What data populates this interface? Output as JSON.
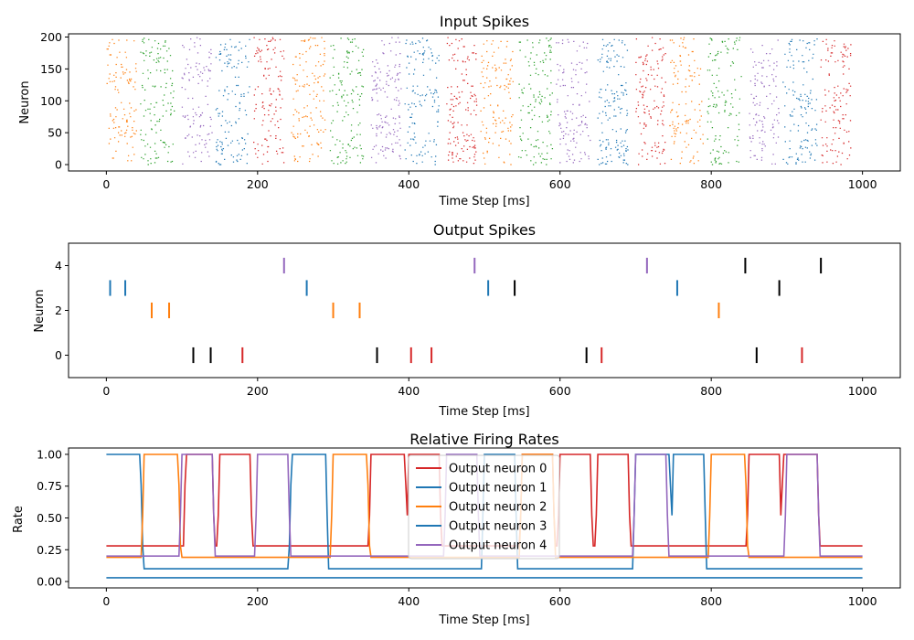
{
  "chart_data": [
    {
      "type": "raster",
      "title": "Input Spikes",
      "xlabel": "Time Step [ms]",
      "ylabel": "Neuron",
      "xlim": [
        -50,
        1050
      ],
      "ylim": [
        -10,
        205
      ],
      "xticks": [
        0,
        200,
        400,
        600,
        800,
        1000
      ],
      "yticks": [
        0,
        50,
        100,
        150,
        200
      ],
      "neuron_count": 200,
      "pattern_duration_ms": 45,
      "pattern_sequence": [
        1,
        2,
        3,
        0,
        4,
        1,
        2,
        3,
        0,
        4,
        1,
        2,
        3,
        0,
        4,
        1,
        2,
        3,
        0,
        4,
        1,
        2
      ],
      "active_window_ms": [
        [
          0,
          40
        ],
        [
          45,
          90
        ],
        [
          100,
          140
        ],
        [
          145,
          190
        ],
        [
          195,
          235
        ],
        [
          245,
          290
        ],
        [
          295,
          340
        ],
        [
          350,
          390
        ],
        [
          395,
          440
        ],
        [
          450,
          490
        ],
        [
          495,
          540
        ],
        [
          545,
          590
        ],
        [
          595,
          640
        ],
        [
          650,
          690
        ],
        [
          700,
          740
        ],
        [
          745,
          790
        ],
        [
          795,
          840
        ],
        [
          850,
          890
        ],
        [
          895,
          940
        ],
        [
          945,
          985
        ]
      ]
    },
    {
      "type": "eventplot",
      "title": "Output Spikes",
      "xlabel": "Time Step [ms]",
      "ylabel": "Neuron",
      "xlim": [
        -50,
        1050
      ],
      "ylim": [
        -1,
        5
      ],
      "xticks": [
        0,
        200,
        400,
        600,
        800,
        1000
      ],
      "yticks": [
        0,
        2,
        4
      ],
      "spikes": [
        {
          "neuron": 4,
          "t": 235,
          "color": "#9467bd"
        },
        {
          "neuron": 4,
          "t": 487,
          "color": "#9467bd"
        },
        {
          "neuron": 4,
          "t": 715,
          "color": "#9467bd"
        },
        {
          "neuron": 4,
          "t": 845,
          "color": "#000000"
        },
        {
          "neuron": 4,
          "t": 945,
          "color": "#000000"
        },
        {
          "neuron": 3,
          "t": 5,
          "color": "#1f77b4"
        },
        {
          "neuron": 3,
          "t": 25,
          "color": "#1f77b4"
        },
        {
          "neuron": 3,
          "t": 265,
          "color": "#1f77b4"
        },
        {
          "neuron": 3,
          "t": 505,
          "color": "#1f77b4"
        },
        {
          "neuron": 3,
          "t": 540,
          "color": "#000000"
        },
        {
          "neuron": 3,
          "t": 755,
          "color": "#1f77b4"
        },
        {
          "neuron": 3,
          "t": 890,
          "color": "#000000"
        },
        {
          "neuron": 2,
          "t": 60,
          "color": "#ff7f0e"
        },
        {
          "neuron": 2,
          "t": 83,
          "color": "#ff7f0e"
        },
        {
          "neuron": 2,
          "t": 300,
          "color": "#ff7f0e"
        },
        {
          "neuron": 2,
          "t": 335,
          "color": "#ff7f0e"
        },
        {
          "neuron": 2,
          "t": 810,
          "color": "#ff7f0e"
        },
        {
          "neuron": 0,
          "t": 115,
          "color": "#000000"
        },
        {
          "neuron": 0,
          "t": 138,
          "color": "#000000"
        },
        {
          "neuron": 0,
          "t": 180,
          "color": "#d62728"
        },
        {
          "neuron": 0,
          "t": 358,
          "color": "#000000"
        },
        {
          "neuron": 0,
          "t": 403,
          "color": "#d62728"
        },
        {
          "neuron": 0,
          "t": 430,
          "color": "#d62728"
        },
        {
          "neuron": 0,
          "t": 635,
          "color": "#000000"
        },
        {
          "neuron": 0,
          "t": 655,
          "color": "#d62728"
        },
        {
          "neuron": 0,
          "t": 860,
          "color": "#000000"
        },
        {
          "neuron": 0,
          "t": 920,
          "color": "#d62728"
        }
      ]
    },
    {
      "type": "line",
      "title": "Relative Firing Rates",
      "xlabel": "Time Step [ms]",
      "ylabel": "Rate",
      "xlim": [
        -50,
        1050
      ],
      "ylim": [
        -0.05,
        1.05
      ],
      "xticks": [
        0,
        200,
        400,
        600,
        800,
        1000
      ],
      "yticks": [
        0.0,
        0.25,
        0.5,
        0.75,
        1.0
      ],
      "ytick_labels": [
        "0.00",
        "0.25",
        "0.50",
        "0.75",
        "1.00"
      ],
      "legend_placement": "upper-center",
      "series": [
        {
          "name": "Output neuron 0",
          "color": "#d62728",
          "baseline": 0.28,
          "high_windows": [
            [
              105,
              140
            ],
            [
              150,
              190
            ],
            [
              350,
              395
            ],
            [
              400,
              440
            ],
            [
              550,
              590
            ],
            [
              600,
              640
            ],
            [
              650,
              690
            ],
            [
              850,
              890
            ],
            [
              895,
              940
            ]
          ]
        },
        {
          "name": "Output neuron 1",
          "color": "#1f77b4",
          "baseline": 0.1,
          "high_windows": [
            [
              0,
              45
            ],
            [
              245,
              290
            ],
            [
              500,
              540
            ],
            [
              700,
              745
            ],
            [
              750,
              790
            ]
          ]
        },
        {
          "name": "Output neuron 2",
          "color": "#ff7f0e",
          "baseline": 0.19,
          "high_windows": [
            [
              50,
              95
            ],
            [
              300,
              345
            ],
            [
              550,
              590
            ],
            [
              800,
              845
            ]
          ]
        },
        {
          "name": "Output neuron 3",
          "color": "#1f77b4",
          "baseline": 0.03,
          "high_windows": []
        },
        {
          "name": "Output neuron 4",
          "color": "#9467bd",
          "baseline": 0.2,
          "high_windows": [
            [
              100,
              140
            ],
            [
              200,
              240
            ],
            [
              450,
              490
            ],
            [
              700,
              740
            ],
            [
              900,
              940
            ]
          ]
        }
      ]
    }
  ]
}
